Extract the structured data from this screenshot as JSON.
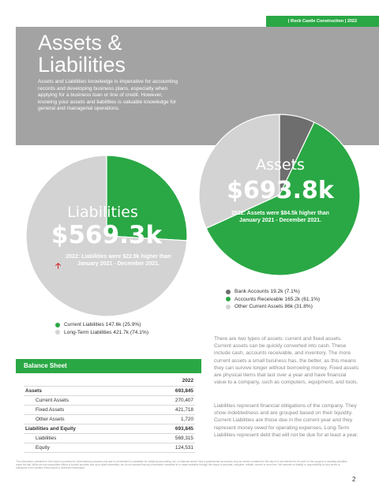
{
  "header": {
    "company": "| Rock Castle Construction | 2022"
  },
  "hero": {
    "title": "Assets & Liabilities",
    "intro": "Assets and Liabilities knowledge is imperative for accounting records and developing business plans, especially when applying for a business loan or line of credit. However, knowing your assets and liabilities is valuable knowledge for general and managerial operations."
  },
  "liabilities": {
    "title": "Liabilities",
    "value": "$569.3k",
    "note": "2022: Liabilities were $22.9k higher than January 2021 - December 2021.",
    "legend": [
      {
        "label": "Current Liabilities 147.6k (25.9%)",
        "color": "#2aa845"
      },
      {
        "label": "Long-Term Liabilities 421.7k (74.1%)",
        "color": "#d3d3d3"
      }
    ]
  },
  "assets": {
    "title": "Assets",
    "value": "$693.8k",
    "note": "2022: Assets were $84.5k higher than January 2021 - December 2021.",
    "legend": [
      {
        "label": "Bank Accounts 19.2k (7.1%)",
        "color": "#6e6e6e"
      },
      {
        "label": "Accounts Receivable 165.2k (61.1%)",
        "color": "#2aa845"
      },
      {
        "label": "Other Current Assets 86k (31.8%)",
        "color": "#d3d3d3"
      }
    ]
  },
  "chart_data": [
    {
      "type": "pie",
      "title": "Liabilities",
      "labels": [
        "Current Liabilities",
        "Long-Term Liabilities"
      ],
      "values": [
        147.6,
        421.7
      ],
      "percent": [
        25.9,
        74.1
      ],
      "colors": [
        "#2aa845",
        "#d3d3d3"
      ]
    },
    {
      "type": "pie",
      "title": "Assets",
      "labels": [
        "Bank Accounts",
        "Accounts Receivable",
        "Other Current Assets"
      ],
      "values": [
        19.2,
        165.2,
        86
      ],
      "percent": [
        7.1,
        61.1,
        31.8
      ],
      "colors": [
        "#6e6e6e",
        "#2aa845",
        "#d3d3d3"
      ]
    }
  ],
  "body": {
    "p1": "There are two types of assets: current and fixed assets. Current assets can be quickly converted into cash. These include cash, accounts receivable, and inventory. The more current assets a small business has, the better, as this means they can survive longer without borrowing money. Fixed assets are physical items that last over a year and have financial value to a company, such as computers, equipment, and tools.",
    "p2": "Liabilities represent financial obligations of the company. They show indebtedness and are grouped based on their liquidity. Current Liabilities are those due in the current year and they represent money owed for operating expenses. Long-Term Liabilities represent debt that will not be due for at least a year."
  },
  "balance_sheet": {
    "title": "Balance Sheet",
    "year": "2022",
    "rows": [
      {
        "label": "Assets",
        "value": "693,845",
        "bold": true,
        "indent": false
      },
      {
        "label": "Current Assets",
        "value": "270,407",
        "bold": false,
        "indent": true
      },
      {
        "label": "Fixed Assets",
        "value": "421,718",
        "bold": false,
        "indent": true
      },
      {
        "label": "Other Assets",
        "value": "1,720",
        "bold": false,
        "indent": true
      },
      {
        "label": "Liabilities  and Equity",
        "value": "693,845",
        "bold": true,
        "indent": false
      },
      {
        "label": "Liabilities",
        "value": "569,315",
        "bold": false,
        "indent": true
      },
      {
        "label": "Equity",
        "value": "124,531",
        "bold": false,
        "indent": true
      }
    ]
  },
  "footer": {
    "disclaimer": "The information contained in this report is provided for informational purposes only and is not intended to substitute for obtaining accounting, tax, or financial advice from a professional accountant. Any tax advice contained in this report is not intended to be used for the purpose of avoiding penalties under tax law. While we use reasonable efforts to furnish accurate and up-to-date information, we do not warrant that any information contained in or made available through this report is accurate, complete, reliable, current or error-free. We assume no liability or responsibility for any errors or omissions in the content of this report or delivered information.",
    "page": "2"
  }
}
